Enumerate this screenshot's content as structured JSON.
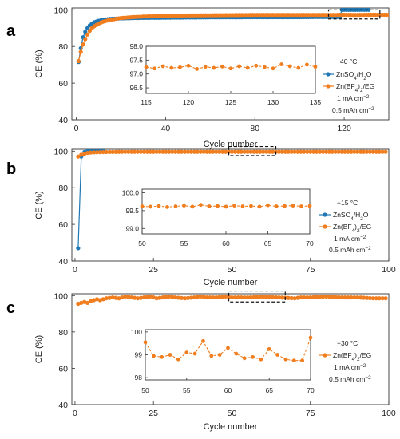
{
  "colors": {
    "blue": "#1f77b4",
    "orange": "#f07d1e"
  },
  "chart_data": [
    {
      "type": "scatter",
      "panel_label": "a",
      "xlabel": "Cycle number",
      "ylabel": "CE (%)",
      "xlim": [
        -2,
        140
      ],
      "ylim": [
        40,
        101
      ],
      "xticks": [
        0,
        40,
        80,
        120
      ],
      "yticks": [
        40,
        60,
        80,
        100
      ],
      "series": [
        {
          "name": "ZnSO4/H2O",
          "color": "#1f77b4",
          "points": [
            [
              1,
              71.5
            ],
            [
              2,
              79
            ],
            [
              3,
              85
            ],
            [
              4,
              88
            ],
            [
              5,
              90
            ],
            [
              6,
              91.5
            ],
            [
              7,
              92.5
            ],
            [
              8,
              93.2
            ],
            [
              10,
              94
            ],
            [
              12,
              94.5
            ],
            [
              15,
              95
            ],
            [
              20,
              95.3
            ],
            [
              25,
              95.5
            ],
            [
              30,
              95.6
            ],
            [
              40,
              95.7
            ],
            [
              50,
              95.8
            ],
            [
              60,
              95.9
            ],
            [
              70,
              95.9
            ],
            [
              80,
              96
            ],
            [
              90,
              96
            ],
            [
              100,
              96
            ],
            [
              110,
              96.1
            ],
            [
              118,
              96.1
            ],
            [
              119,
              100
            ],
            [
              122,
              100
            ],
            [
              125,
              100
            ],
            [
              128,
              100
            ],
            [
              131,
              100
            ]
          ]
        },
        {
          "name": "Zn(BF4)2/EG",
          "color": "#f07d1e",
          "points": [
            [
              1,
              72
            ],
            [
              2,
              77
            ],
            [
              3,
              81
            ],
            [
              4,
              84
            ],
            [
              5,
              86.5
            ],
            [
              6,
              88.5
            ],
            [
              7,
              90
            ],
            [
              8,
              91
            ],
            [
              10,
              92.5
            ],
            [
              12,
              93.5
            ],
            [
              15,
              94.5
            ],
            [
              20,
              95.5
            ],
            [
              25,
              96
            ],
            [
              30,
              96.3
            ],
            [
              40,
              96.7
            ],
            [
              50,
              96.9
            ],
            [
              60,
              97
            ],
            [
              70,
              97.1
            ],
            [
              80,
              97.2
            ],
            [
              90,
              97.2
            ],
            [
              100,
              97.2
            ],
            [
              110,
              97.2
            ],
            [
              115,
              97.2
            ],
            [
              120,
              97.3
            ],
            [
              125,
              97.2
            ],
            [
              130,
              97.3
            ],
            [
              135,
              97.3
            ],
            [
              140,
              97.3
            ]
          ]
        }
      ],
      "box": {
        "x": [
          113,
          136
        ],
        "y": [
          95,
          100
        ]
      },
      "inset": {
        "xlim": [
          115,
          135
        ],
        "ylim": [
          96.3,
          98.0
        ],
        "xticks": [
          115,
          120,
          125,
          130,
          135
        ],
        "yticks": [
          96.5,
          97.0,
          97.5,
          98.0
        ],
        "ytick_labels": [
          "96.5",
          "97.0",
          "97.5",
          "98.0"
        ],
        "series_name": "Zn(BF4)2/EG",
        "x": [
          115,
          116,
          117,
          118,
          119,
          120,
          121,
          122,
          123,
          124,
          125,
          126,
          127,
          128,
          129,
          130,
          131,
          132,
          133,
          134,
          135
        ],
        "y": [
          97.25,
          97.2,
          97.28,
          97.22,
          97.24,
          97.3,
          97.18,
          97.26,
          97.22,
          97.27,
          97.2,
          97.28,
          97.22,
          97.3,
          97.25,
          97.2,
          97.35,
          97.28,
          97.22,
          97.34,
          97.26
        ]
      },
      "legend": {
        "condition": "40 °C",
        "current": "1 mA cm−2",
        "capacity": "0.5 mAh cm−2"
      }
    },
    {
      "type": "scatter",
      "panel_label": "b",
      "xlabel": "Cycle number",
      "ylabel": "CE (%)",
      "xlim": [
        -1,
        100
      ],
      "ylim": [
        40,
        101
      ],
      "xticks": [
        0,
        25,
        50,
        75,
        100
      ],
      "yticks": [
        40,
        60,
        80,
        100
      ],
      "series": [
        {
          "name": "ZnSO4/H2O",
          "color": "#1f77b4",
          "points": [
            [
              1,
              47
            ],
            [
              2,
              97
            ],
            [
              3,
              99.5
            ],
            [
              4,
              100
            ],
            [
              5,
              100
            ],
            [
              6,
              100
            ],
            [
              7,
              100
            ],
            [
              8,
              100
            ],
            [
              9,
              100
            ]
          ]
        },
        {
          "name": "Zn(BF4)2/EG",
          "color": "#f07d1e",
          "points": [
            [
              1,
              97
            ],
            [
              2,
              98
            ],
            [
              3,
              98.5
            ],
            [
              4,
              99
            ],
            [
              5,
              99.2
            ],
            [
              6,
              99.3
            ],
            [
              8,
              99.4
            ],
            [
              10,
              99.5
            ],
            [
              15,
              99.6
            ],
            [
              20,
              99.6
            ],
            [
              30,
              99.6
            ],
            [
              40,
              99.6
            ],
            [
              50,
              99.6
            ],
            [
              60,
              99.6
            ],
            [
              70,
              99.6
            ],
            [
              80,
              99.6
            ],
            [
              90,
              99.6
            ],
            [
              99,
              99.6
            ]
          ]
        }
      ],
      "box": {
        "x": [
          49,
          64
        ],
        "y": [
          97.5,
          102.5
        ]
      },
      "inset": {
        "xlim": [
          50,
          70
        ],
        "ylim": [
          98.85,
          100.1
        ],
        "xticks": [
          50,
          55,
          60,
          65,
          70
        ],
        "yticks": [
          99.0,
          99.5,
          100.0
        ],
        "ytick_labels": [
          "99.0",
          "99.5",
          "100.0"
        ],
        "series_name": "Zn(BF4)2/EG",
        "x": [
          50,
          51,
          52,
          53,
          54,
          55,
          56,
          57,
          58,
          59,
          60,
          61,
          62,
          63,
          64,
          65,
          66,
          67,
          68,
          69,
          70
        ],
        "y": [
          99.62,
          99.61,
          99.63,
          99.6,
          99.62,
          99.64,
          99.61,
          99.66,
          99.62,
          99.63,
          99.61,
          99.64,
          99.62,
          99.63,
          99.61,
          99.65,
          99.62,
          99.63,
          99.64,
          99.62,
          99.63
        ]
      },
      "legend": {
        "condition": "−15 °C",
        "current": "1 mA cm−2",
        "capacity": "0.5 mAh cm−2"
      }
    },
    {
      "type": "scatter",
      "panel_label": "c",
      "xlabel": "Cycle number",
      "ylabel": "CE (%)",
      "xlim": [
        -1,
        100
      ],
      "ylim": [
        40,
        101
      ],
      "xticks": [
        0,
        25,
        50,
        75,
        100
      ],
      "yticks": [
        40,
        60,
        80,
        100
      ],
      "series": [
        {
          "name": "Zn(BF4)2/EG",
          "color": "#f07d1e",
          "points": [
            [
              1,
              95.5
            ],
            [
              2,
              96
            ],
            [
              3,
              96.5
            ],
            [
              4,
              96
            ],
            [
              5,
              97
            ],
            [
              6,
              97.5
            ],
            [
              7,
              98
            ],
            [
              8,
              97.5
            ],
            [
              9,
              98
            ],
            [
              10,
              98.5
            ],
            [
              12,
              99
            ],
            [
              14,
              98.5
            ],
            [
              16,
              99.5
            ],
            [
              18,
              99
            ],
            [
              20,
              98.5
            ],
            [
              22,
              99
            ],
            [
              24,
              99.5
            ],
            [
              26,
              98.5
            ],
            [
              28,
              99
            ],
            [
              30,
              99.5
            ],
            [
              32,
              99
            ],
            [
              35,
              98.5
            ],
            [
              38,
              99
            ],
            [
              40,
              99.5
            ],
            [
              42,
              99
            ],
            [
              45,
              99
            ],
            [
              48,
              99.5
            ],
            [
              50,
              99
            ],
            [
              55,
              99
            ],
            [
              60,
              99.3
            ],
            [
              65,
              99
            ],
            [
              70,
              98.5
            ],
            [
              72,
              99
            ],
            [
              75,
              99
            ],
            [
              80,
              99.5
            ],
            [
              85,
              99
            ],
            [
              90,
              99
            ],
            [
              95,
              98.5
            ],
            [
              99,
              98.5
            ]
          ]
        }
      ],
      "box": {
        "x": [
          49,
          67
        ],
        "y": [
          96.5,
          102.5
        ]
      },
      "inset": {
        "xlim": [
          50,
          70
        ],
        "ylim": [
          97.9,
          100.1
        ],
        "xticks": [
          50,
          55,
          60,
          65,
          70
        ],
        "yticks": [
          98,
          99,
          100
        ],
        "ytick_labels": [
          "98",
          "99",
          "100"
        ],
        "series_name": "Zn(BF4)2/EG",
        "x": [
          50,
          51,
          52,
          53,
          54,
          55,
          56,
          57,
          58,
          59,
          60,
          61,
          62,
          63,
          64,
          65,
          66,
          67,
          68,
          69,
          70
        ],
        "y": [
          99.55,
          98.95,
          98.9,
          99.0,
          98.8,
          99.1,
          99.05,
          99.6,
          98.95,
          99.0,
          99.3,
          99.05,
          98.85,
          98.9,
          98.8,
          99.25,
          99.0,
          98.8,
          98.75,
          98.75,
          99.75
        ]
      },
      "legend": {
        "condition": "−30 °C",
        "current": "1 mA cm−2",
        "capacity": "0.5 mAh cm−2"
      }
    }
  ]
}
